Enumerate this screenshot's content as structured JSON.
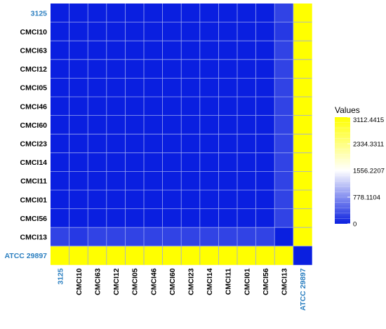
{
  "chart_data": {
    "type": "heatmap",
    "title": "",
    "labels": [
      "3125",
      "CMCI10",
      "CMCI63",
      "CMCI12",
      "CMCI05",
      "CMCI46",
      "CMCI60",
      "CMCI23",
      "CMCI14",
      "CMCI11",
      "CMCI01",
      "CMCI56",
      "CMCI13",
      "ATCC 29897"
    ],
    "highlighted_labels": [
      "3125",
      "ATCC 29897"
    ],
    "highlight_color": "#2b7fc0",
    "matrix": [
      [
        0,
        0,
        0,
        0,
        0,
        0,
        0,
        0,
        0,
        0,
        0,
        0,
        250,
        3112.4415
      ],
      [
        0,
        0,
        0,
        0,
        0,
        0,
        0,
        0,
        0,
        0,
        0,
        0,
        180,
        3112.4415
      ],
      [
        0,
        0,
        0,
        0,
        0,
        0,
        0,
        0,
        0,
        0,
        0,
        0,
        250,
        3112.4415
      ],
      [
        0,
        0,
        0,
        0,
        0,
        0,
        0,
        0,
        0,
        0,
        0,
        0,
        250,
        3112.4415
      ],
      [
        0,
        0,
        0,
        0,
        0,
        0,
        0,
        0,
        0,
        0,
        0,
        0,
        250,
        3112.4415
      ],
      [
        0,
        0,
        0,
        0,
        0,
        0,
        0,
        0,
        0,
        0,
        0,
        0,
        250,
        3112.4415
      ],
      [
        0,
        0,
        0,
        0,
        0,
        0,
        0,
        0,
        0,
        0,
        0,
        0,
        250,
        3112.4415
      ],
      [
        0,
        0,
        0,
        0,
        0,
        0,
        0,
        0,
        0,
        0,
        0,
        0,
        250,
        3112.4415
      ],
      [
        0,
        0,
        0,
        0,
        0,
        0,
        0,
        0,
        0,
        0,
        0,
        0,
        250,
        3112.4415
      ],
      [
        0,
        0,
        0,
        0,
        0,
        0,
        0,
        0,
        0,
        0,
        0,
        0,
        250,
        3112.4415
      ],
      [
        0,
        0,
        0,
        0,
        0,
        0,
        0,
        0,
        0,
        0,
        0,
        0,
        250,
        3112.4415
      ],
      [
        0,
        0,
        0,
        0,
        0,
        0,
        0,
        0,
        0,
        0,
        0,
        0,
        250,
        3112.4415
      ],
      [
        250,
        180,
        250,
        250,
        250,
        250,
        250,
        250,
        250,
        250,
        250,
        250,
        0,
        3112.4415
      ],
      [
        3112.4415,
        3112.4415,
        3112.4415,
        3112.4415,
        3112.4415,
        3112.4415,
        3112.4415,
        3112.4415,
        3112.4415,
        3112.4415,
        3112.4415,
        3112.4415,
        3112.4415,
        0
      ]
    ],
    "legend": {
      "title": "Values",
      "ticks": [
        3112.4415,
        2334.3311,
        1556.2207,
        778.1104,
        0
      ],
      "tick_labels": [
        "3112.4415",
        "2334.3311",
        "1556.2207",
        "778.1104",
        "0"
      ],
      "range": [
        0,
        3112.4415
      ],
      "placement": "right"
    },
    "color_scale": {
      "low": "#0a1fe0",
      "mid": "#ffffff",
      "high": "#ffff00"
    },
    "grid": true,
    "grid_color": "#9aa6f0"
  }
}
